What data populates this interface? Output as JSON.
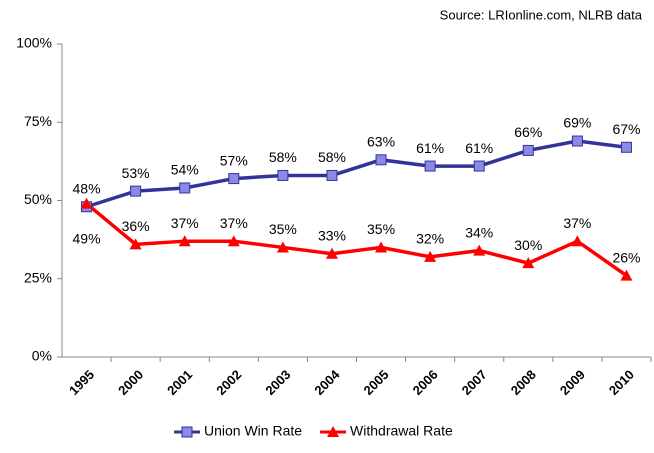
{
  "chart_data": {
    "type": "line",
    "source": "Source: LRIonline.com, NLRB data",
    "categories": [
      "1995",
      "2000",
      "2001",
      "2002",
      "2003",
      "2004",
      "2005",
      "2006",
      "2007",
      "2008",
      "2009",
      "2010"
    ],
    "series": [
      {
        "name": "Union Win Rate",
        "color": "#333399",
        "marker_color": "#8a8ae6",
        "marker": "square",
        "values": [
          48,
          53,
          54,
          57,
          58,
          58,
          63,
          61,
          61,
          66,
          69,
          67
        ],
        "value_labels": [
          "48%",
          "53%",
          "54%",
          "57%",
          "58%",
          "58%",
          "63%",
          "61%",
          "61%",
          "66%",
          "69%",
          "67%"
        ]
      },
      {
        "name": "Withdrawal Rate",
        "color": "#ff0000",
        "marker_color": "#ff0000",
        "marker": "triangle",
        "values": [
          49,
          36,
          37,
          37,
          35,
          33,
          35,
          32,
          34,
          30,
          37,
          26
        ],
        "value_labels": [
          "49%",
          "36%",
          "37%",
          "37%",
          "35%",
          "33%",
          "35%",
          "32%",
          "34%",
          "30%",
          "37%",
          "26%"
        ]
      }
    ],
    "ylim": [
      0,
      100
    ],
    "yticks": [
      {
        "value": 0,
        "label": "0%"
      },
      {
        "value": 25,
        "label": "25%"
      },
      {
        "value": 50,
        "label": "50%"
      },
      {
        "value": 75,
        "label": "75%"
      },
      {
        "value": 100,
        "label": "100%"
      }
    ],
    "grid": false,
    "legend": "bottom"
  }
}
